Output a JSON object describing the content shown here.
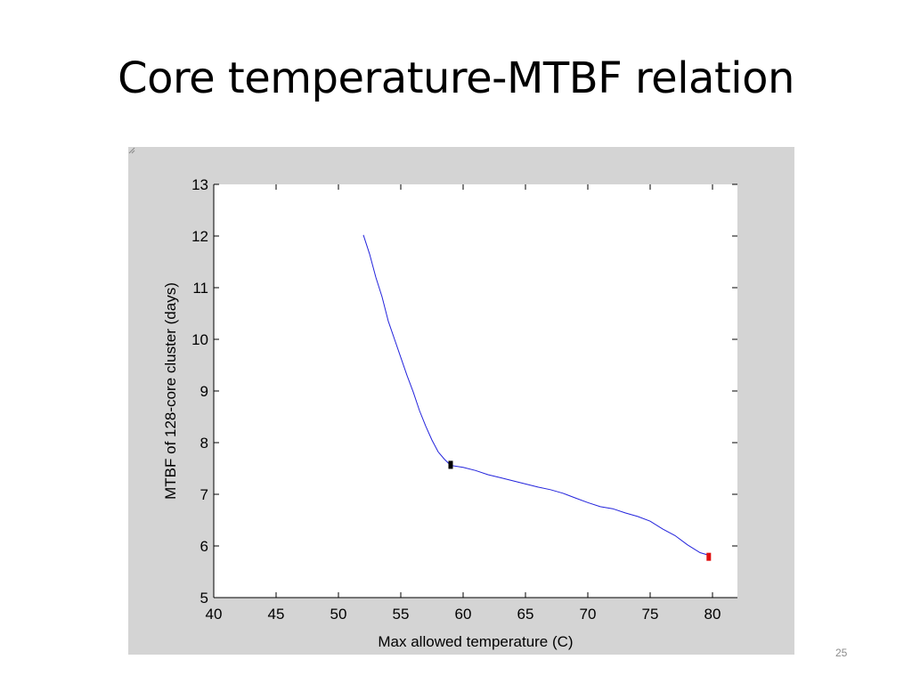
{
  "slide": {
    "title": "Core temperature-MTBF relation",
    "number": "25"
  },
  "colors": {
    "figure_background": "#d4d4d4",
    "axes_background": "#ffffff",
    "line": "#2323dc",
    "marker_knee": "#000000",
    "marker_end": "#e01010"
  },
  "chart_data": {
    "type": "line",
    "title": "",
    "xlabel": "Max allowed temperature (C)",
    "ylabel": "MTBF of 128-core cluster (days)",
    "xlim": [
      40,
      82
    ],
    "ylim": [
      5,
      13
    ],
    "xticks": [
      40,
      45,
      50,
      55,
      60,
      65,
      70,
      75,
      80
    ],
    "yticks": [
      5,
      6,
      7,
      8,
      9,
      10,
      11,
      12,
      13
    ],
    "grid": false,
    "series": [
      {
        "x": [
          52.0,
          52.5,
          53.0,
          53.5,
          54.0,
          54.5,
          55.0,
          55.5,
          56.0,
          56.5,
          57.0,
          57.5,
          58.0,
          58.5,
          59.0,
          60.0,
          61.0,
          62.0,
          63.0,
          64.0,
          65.0,
          66.0,
          67.0,
          68.0,
          69.0,
          70.0,
          71.0,
          72.0,
          73.0,
          74.0,
          75.0,
          76.0,
          77.0,
          78.0,
          79.0,
          79.7
        ],
        "y": [
          12.02,
          11.65,
          11.2,
          10.82,
          10.35,
          10.0,
          9.65,
          9.3,
          8.98,
          8.62,
          8.32,
          8.05,
          7.82,
          7.68,
          7.56,
          7.52,
          7.46,
          7.38,
          7.32,
          7.26,
          7.2,
          7.14,
          7.09,
          7.02,
          6.93,
          6.84,
          6.76,
          6.72,
          6.64,
          6.57,
          6.48,
          6.33,
          6.2,
          6.02,
          5.87,
          5.82
        ]
      }
    ],
    "markers": [
      {
        "x": 59.0,
        "y": 7.57,
        "color": "marker_knee"
      },
      {
        "x": 79.7,
        "y": 5.79,
        "color": "marker_end"
      }
    ]
  }
}
